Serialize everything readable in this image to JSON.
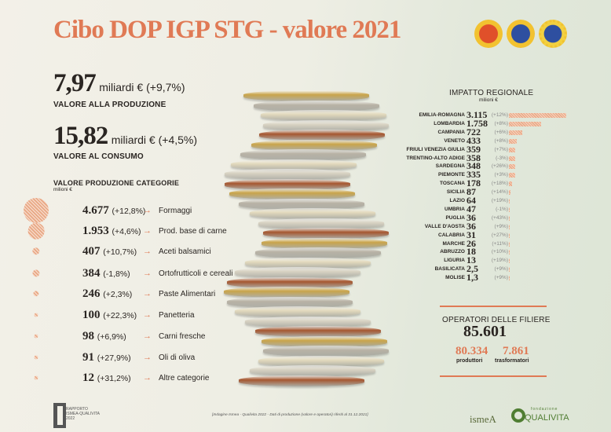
{
  "title": "Cibo DOP IGP STG - valore 2021",
  "seals": [
    {
      "icon": "dop-seal-icon",
      "color": "#e0502a"
    },
    {
      "icon": "igp-seal-icon",
      "color": "#2e4fa0"
    },
    {
      "icon": "stg-seal-icon",
      "color": "#2e4fa0"
    }
  ],
  "produzione": {
    "value": "7,97",
    "unit": "miliardi € (+9,7%)",
    "label": "VALORE ALLA PRODUZIONE"
  },
  "consumo": {
    "value": "15,82",
    "unit": "miliardi € (+4,5%)",
    "label": "VALORE AL CONSUMO"
  },
  "categorie": {
    "title": "VALORE PRODUZIONE CATEGORIE",
    "unit": "milioni €",
    "items": [
      {
        "value": "4.677",
        "change": "(+12,8%)",
        "name": "Formaggi",
        "num": 4677
      },
      {
        "value": "1.953",
        "change": "(+4,6%)",
        "name": "Prod. base di carne",
        "num": 1953
      },
      {
        "value": "407",
        "change": "(+10,7%)",
        "name": "Aceti balsamici",
        "num": 407
      },
      {
        "value": "384",
        "change": "(-1,8%)",
        "name": "Ortofrutticoli e cereali",
        "num": 384
      },
      {
        "value": "246",
        "change": "(+2,3%)",
        "name": "Paste Alimentari",
        "num": 246
      },
      {
        "value": "100",
        "change": "(+22,3%)",
        "name": "Panetteria",
        "num": 100
      },
      {
        "value": "98",
        "change": "(+6,9%)",
        "name": "Carni fresche",
        "num": 98
      },
      {
        "value": "91",
        "change": "(+27,9%)",
        "name": "Oli di oliva",
        "num": 91
      },
      {
        "value": "12",
        "change": "(+31,2%)",
        "name": "Altre categorie",
        "num": 12
      }
    ]
  },
  "arrow": "→",
  "chart_data": {
    "type": "bar",
    "orientation": "horizontal",
    "title": "IMPATTO REGIONALE",
    "unit": "milioni €",
    "categories": [
      "EMILIA-ROMAGNA",
      "LOMBARDIA",
      "CAMPANIA",
      "VENETO",
      "FRIULI VENEZIA GIULIA",
      "TRENTINO-ALTO ADIGE",
      "SARDEGNA",
      "PIEMONTE",
      "TOSCANA",
      "SICILIA",
      "LAZIO",
      "UMBRIA",
      "PUGLIA",
      "VALLE D'AOSTA",
      "CALABRIA",
      "MARCHE",
      "ABRUZZO",
      "LIGURIA",
      "BASILICATA",
      "MOLISE"
    ],
    "labels": [
      "3.115",
      "1.758",
      "722",
      "433",
      "359",
      "358",
      "348",
      "335",
      "178",
      "87",
      "64",
      "47",
      "36",
      "36",
      "31",
      "26",
      "18",
      "13",
      "2,5",
      "1,3"
    ],
    "values": [
      3115,
      1758,
      722,
      433,
      359,
      358,
      348,
      335,
      178,
      87,
      64,
      47,
      36,
      36,
      31,
      26,
      18,
      13,
      2.5,
      1.3
    ],
    "changes": [
      "(+12%)",
      "(+8%)",
      "(+6%)",
      "(+8%)",
      "(+7%)",
      "(-3%)",
      "(+26%)",
      "(+3%)",
      "(+18%)",
      "(+14%)",
      "(+19%)",
      "(-1%)",
      "(+43%)",
      "(+9%)",
      "(+27%)",
      "(+11%)",
      "(+10%)",
      "(+19%)",
      "(+9%)",
      "(+9%)"
    ],
    "color": "#e8a784"
  },
  "operatori": {
    "title": "OPERATORI DELLE FILIERE",
    "total": "85.601",
    "produttori": "80.334",
    "produttori_label": "produttori",
    "trasformatori": "7.861",
    "trasformatori_label": "trasformatori"
  },
  "footer": {
    "note": "[Indagine Ismea - Qualivita 2022 - Dati di produzione (valore e operatori) riferiti al 31.12.2021]",
    "rapporto": "RAPPORTO ISMEA-QUALIVITA 2022",
    "ismea": "ismeA",
    "qualivita_small": "fondazione",
    "qualivita": "QUALIVITA"
  }
}
